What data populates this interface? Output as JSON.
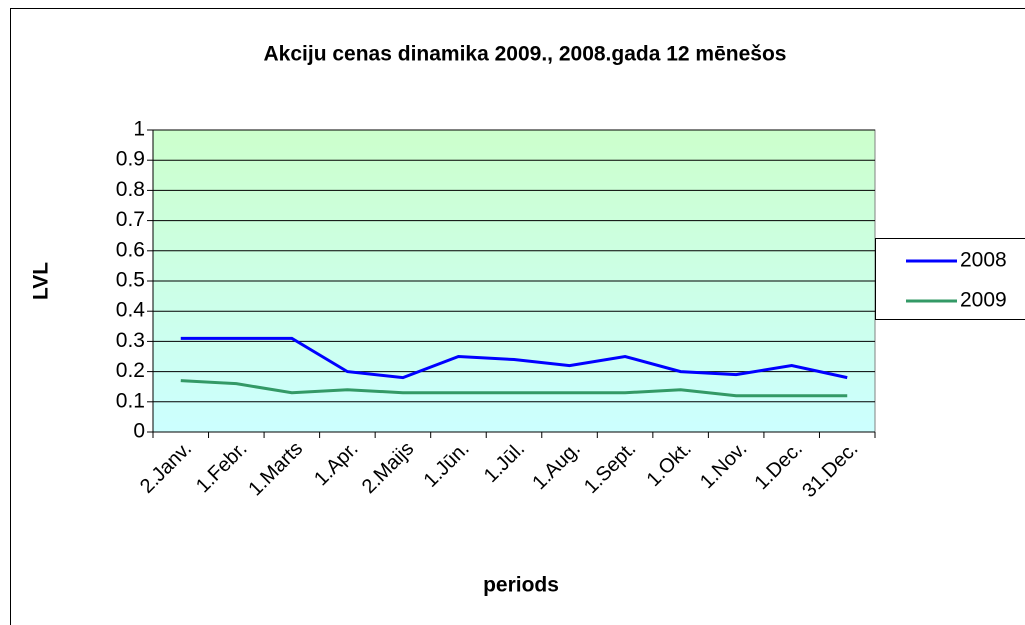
{
  "chart_data": {
    "type": "line",
    "title": "Akciju cenas dinamika 2009., 2008.gada 12 mēnešos",
    "x_label": "periods",
    "y_label": "LVL",
    "categories": [
      "2.Janv.",
      "1.Febr.",
      "1.Marts",
      "1.Apr.",
      "2.Maijs",
      "1.Jūn.",
      "1.Jūl.",
      "1.Aug.",
      "1.Sept.",
      "1.Okt.",
      "1.Nov.",
      "1.Dec.",
      "31.Dec."
    ],
    "series": [
      {
        "name": "2008",
        "color": "#0000ff",
        "values": [
          0.31,
          0.31,
          0.31,
          0.2,
          0.18,
          0.25,
          0.24,
          0.22,
          0.25,
          0.2,
          0.19,
          0.22,
          0.18
        ]
      },
      {
        "name": "2009",
        "color": "#339966",
        "values": [
          0.17,
          0.16,
          0.13,
          0.14,
          0.13,
          0.13,
          0.13,
          0.13,
          0.13,
          0.14,
          0.12,
          0.12,
          0.12
        ]
      }
    ],
    "ylim": [
      0,
      1
    ],
    "yticks": [
      0,
      0.1,
      0.2,
      0.3,
      0.4,
      0.5,
      0.6,
      0.7,
      0.8,
      0.9,
      1
    ],
    "grid": true,
    "legend": "right"
  }
}
